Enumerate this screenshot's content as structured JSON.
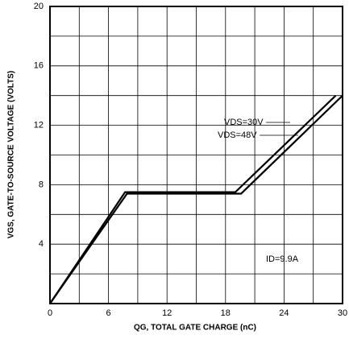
{
  "chart_data": {
    "type": "line",
    "xlabel": "QG, TOTAL GATE CHARGE (nC)",
    "ylabel": "VGS, GATE-TO-SOURCE VOLTAGE (VOLTS)",
    "annotation": "ID=9.9A",
    "series": [
      {
        "name": "VDS=30V",
        "color": "#000000",
        "x": [
          0,
          7.7,
          19.0,
          29.3
        ],
        "values": [
          0,
          7.5,
          7.5,
          14
        ]
      },
      {
        "name": "VDS=48V",
        "color": "#000000",
        "x": [
          0,
          7.9,
          19.6,
          30
        ],
        "values": [
          0,
          7.4,
          7.4,
          14
        ]
      }
    ],
    "xlim": [
      0,
      30
    ],
    "xticks": [
      0,
      6,
      12,
      18,
      24,
      30
    ],
    "xminor": [
      3,
      9,
      15,
      21,
      27
    ],
    "ylim": [
      0,
      20
    ],
    "yticks": [
      4,
      8,
      12,
      16,
      20
    ],
    "yminor": [
      2,
      6,
      10,
      14,
      18
    ],
    "grid": true
  }
}
